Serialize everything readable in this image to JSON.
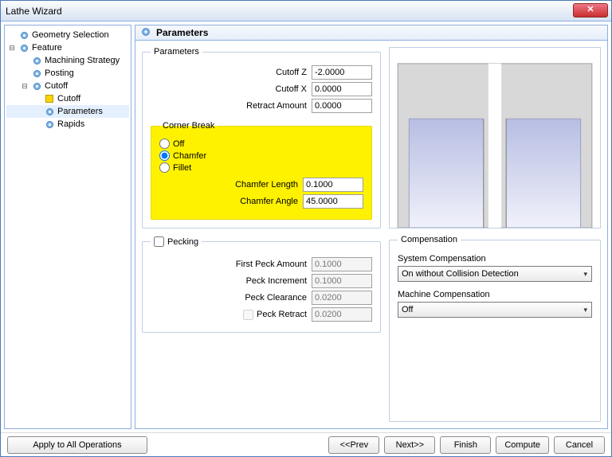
{
  "window": {
    "title": "Lathe Wizard"
  },
  "tree": {
    "items": [
      {
        "label": "Geometry Selection",
        "indent": 0,
        "icon": "gear",
        "exp": ""
      },
      {
        "label": "Feature",
        "indent": 0,
        "icon": "gear",
        "exp": "⊟"
      },
      {
        "label": "Machining Strategy",
        "indent": 1,
        "icon": "gear",
        "exp": ""
      },
      {
        "label": "Posting",
        "indent": 1,
        "icon": "gear",
        "exp": ""
      },
      {
        "label": "Cutoff",
        "indent": 1,
        "icon": "gear",
        "exp": "⊟"
      },
      {
        "label": "Cutoff",
        "indent": 2,
        "icon": "yellow",
        "exp": ""
      },
      {
        "label": "Parameters",
        "indent": 2,
        "icon": "gear",
        "exp": "",
        "selected": true
      },
      {
        "label": "Rapids",
        "indent": 2,
        "icon": "gear",
        "exp": ""
      }
    ]
  },
  "header": {
    "title": "Parameters"
  },
  "parameters": {
    "legend": "Parameters",
    "cutoff_z_label": "Cutoff Z",
    "cutoff_z": "-2.0000",
    "cutoff_x_label": "Cutoff X",
    "cutoff_x": "0.0000",
    "retract_label": "Retract Amount",
    "retract": "0.0000"
  },
  "corner": {
    "legend": "Corner Break",
    "off": "Off",
    "chamfer": "Chamfer",
    "fillet": "Fillet",
    "len_label": "Chamfer Length",
    "len": "0.1000",
    "ang_label": "Chamfer Angle",
    "ang": "45.0000",
    "highlight_bg": "#fff200"
  },
  "pecking": {
    "label": "Pecking",
    "first_label": "First Peck Amount",
    "first": "0.1000",
    "incr_label": "Peck Increment",
    "incr": "0.1000",
    "clear_label": "Peck Clearance",
    "clear": "0.0200",
    "retract_label": "Peck Retract",
    "retract": "0.0200"
  },
  "compensation": {
    "legend": "Compensation",
    "sys_label": "System Compensation",
    "sys_value": "On without Collision Detection",
    "mach_label": "Machine Compensation",
    "mach_value": "Off"
  },
  "footer": {
    "apply": "Apply to All Operations",
    "prev": "<<Prev",
    "next": "Next>>",
    "finish": "Finish",
    "compute": "Compute",
    "cancel": "Cancel"
  },
  "preview": {
    "bg": "#ffffff",
    "block_fill": "#d8d8d8",
    "block_stroke": "#a0a0a0",
    "bore_top": "#b7bee2",
    "bore_bottom": "#f0f1fa"
  }
}
